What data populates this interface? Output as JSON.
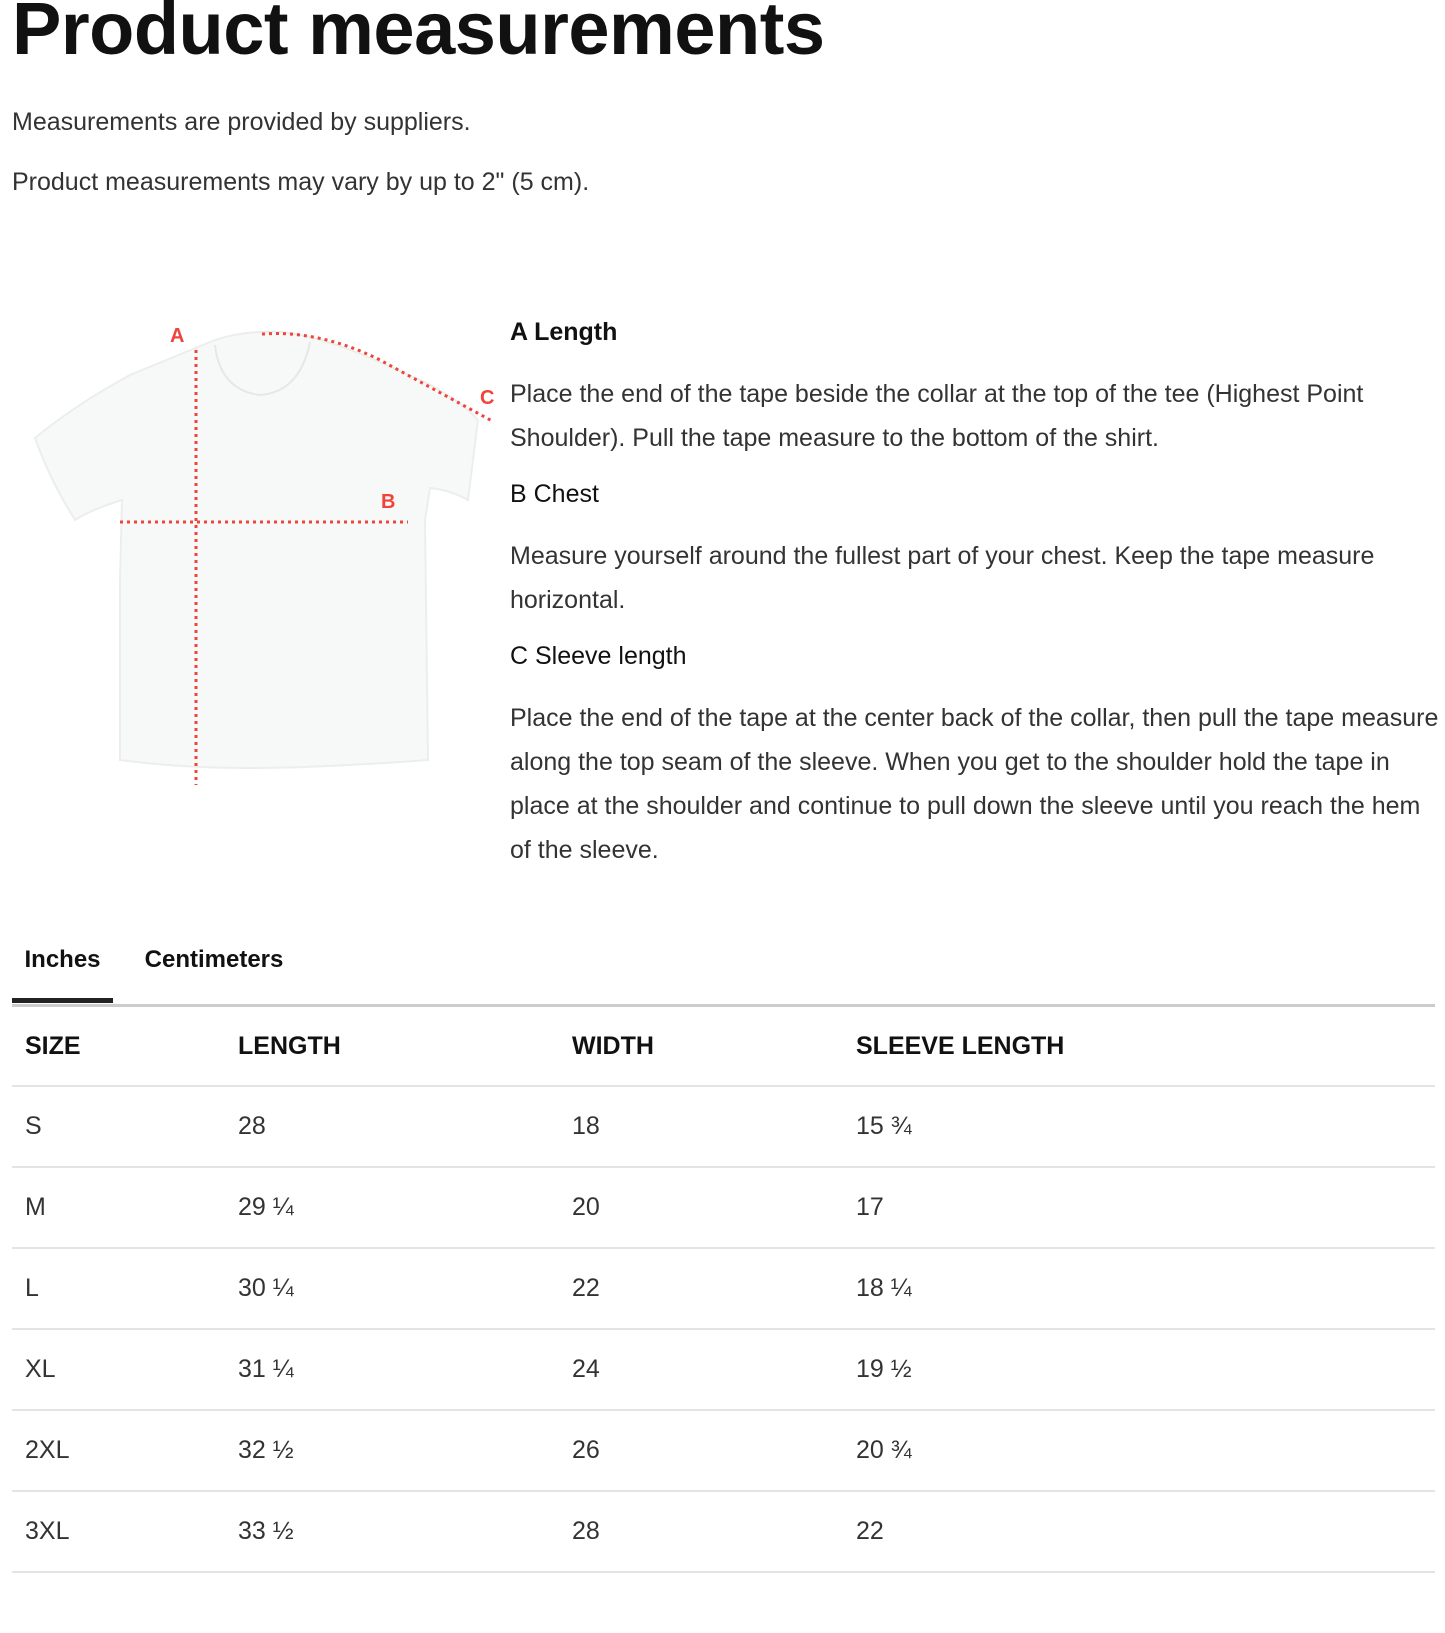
{
  "page": {
    "title": "Product measurements",
    "notes": [
      "Measurements are provided by suppliers.",
      "Product measurements may vary by up to 2\" (5 cm)."
    ]
  },
  "diagram": {
    "labels": {
      "a": "A",
      "b": "B",
      "c": "C"
    },
    "marker_color": "#f0443a"
  },
  "measurements": [
    {
      "title": "A Length",
      "text": "Place the end of the tape beside the collar at the top of the tee (Highest Point Shoulder). Pull the tape measure to the bottom of the shirt."
    },
    {
      "title": "B Chest",
      "text": "Measure yourself around the fullest part of your chest. Keep the tape measure horizontal."
    },
    {
      "title": "C Sleeve length",
      "text": "Place the end of the tape at the center back of the collar, then pull the tape measure along the top seam of the sleeve. When you get to the shoulder hold the tape in place at the shoulder and continue to pull down the sleeve until you reach the hem of the sleeve."
    }
  ],
  "tabs": [
    {
      "label": "Inches",
      "active": true
    },
    {
      "label": "Centimeters",
      "active": false
    }
  ],
  "table": {
    "headers": [
      "SIZE",
      "LENGTH",
      "WIDTH",
      "SLEEVE LENGTH"
    ],
    "rows": [
      [
        "S",
        "28",
        "18",
        "15 ¾"
      ],
      [
        "M",
        "29 ¼",
        "20",
        "17"
      ],
      [
        "L",
        "30 ¼",
        "22",
        "18 ¼"
      ],
      [
        "XL",
        "31 ¼",
        "24",
        "19 ½"
      ],
      [
        "2XL",
        "32 ½",
        "26",
        "20 ¾"
      ],
      [
        "3XL",
        "33 ½",
        "28",
        "22"
      ]
    ]
  }
}
